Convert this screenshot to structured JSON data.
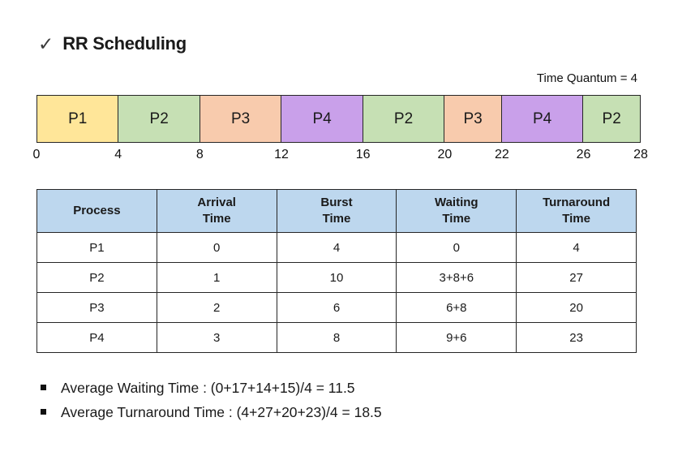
{
  "title": {
    "check": "✓",
    "text": "RR Scheduling"
  },
  "time_quantum": "Time Quantum = 4",
  "colors": {
    "p1_yellow": "#FFE699",
    "p2_green": "#C6E0B4",
    "p3_peach": "#F8CBAD",
    "p4_purple": "#C9A0EA",
    "table_header_blue": "#BDD7EE",
    "border": "#262626"
  },
  "gantt": {
    "segments": [
      {
        "label": "P1",
        "start": 0,
        "end": 4,
        "color": "#FFE699",
        "flex": 10
      },
      {
        "label": "P2",
        "start": 4,
        "end": 8,
        "color": "#C6E0B4",
        "flex": 10
      },
      {
        "label": "P3",
        "start": 8,
        "end": 12,
        "color": "#F8CBAD",
        "flex": 10
      },
      {
        "label": "P4",
        "start": 12,
        "end": 16,
        "color": "#C9A0EA",
        "flex": 10
      },
      {
        "label": "P2",
        "start": 16,
        "end": 20,
        "color": "#C6E0B4",
        "flex": 10
      },
      {
        "label": "P3",
        "start": 20,
        "end": 22,
        "color": "#F8CBAD",
        "flex": 7
      },
      {
        "label": "P4",
        "start": 22,
        "end": 26,
        "color": "#C9A0EA",
        "flex": 10
      },
      {
        "label": "P2",
        "start": 26,
        "end": 28,
        "color": "#C6E0B4",
        "flex": 7
      }
    ],
    "ticks": [
      {
        "value": "0",
        "pos": 0
      },
      {
        "value": "4",
        "pos": 13.51
      },
      {
        "value": "8",
        "pos": 27.03
      },
      {
        "value": "12",
        "pos": 40.54
      },
      {
        "value": "16",
        "pos": 54.05
      },
      {
        "value": "20",
        "pos": 67.57
      },
      {
        "value": "22",
        "pos": 77.03
      },
      {
        "value": "26",
        "pos": 90.54
      },
      {
        "value": "28",
        "pos": 100
      }
    ]
  },
  "table": {
    "headers": [
      "Process",
      "Arrival\nTime",
      "Burst\nTime",
      "Waiting\nTime",
      "Turnaround\nTime"
    ],
    "rows": [
      [
        "P1",
        "0",
        "4",
        "0",
        "4"
      ],
      [
        "P2",
        "1",
        "10",
        "3+8+6",
        "27"
      ],
      [
        "P3",
        "2",
        "6",
        "6+8",
        "20"
      ],
      [
        "P4",
        "3",
        "8",
        "9+6",
        "23"
      ]
    ]
  },
  "bullets": [
    "Average Waiting Time : (0+17+14+15)/4 = 11.5",
    "Average Turnaround Time : (4+27+20+23)/4 = 18.5"
  ]
}
